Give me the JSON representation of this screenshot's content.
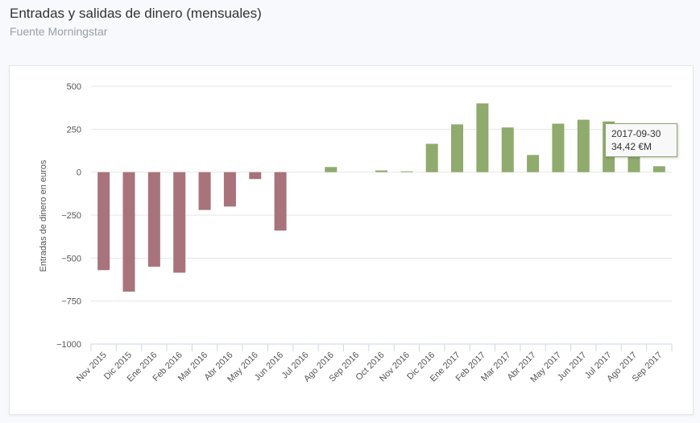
{
  "header": {
    "title": "Entradas y salidas de dinero (mensuales)",
    "subtitle": "Fuente Morningstar"
  },
  "tooltip": {
    "date": "2017-09-30",
    "value": "34,42 €M"
  },
  "colors": {
    "negative": "#a8737a",
    "positive": "#8fab6d",
    "grid": "#e6e6e6"
  },
  "chart_data": {
    "type": "bar",
    "title": "Entradas y salidas de dinero (mensuales)",
    "subtitle": "Fuente Morningstar",
    "xlabel": "",
    "ylabel": "Entradas de dinero en euros",
    "ylim": [
      -1000,
      500
    ],
    "yticks": [
      500,
      250,
      0,
      -250,
      -500,
      -750,
      -1000
    ],
    "ytick_labels": [
      "500",
      "250",
      "0",
      "−250",
      "−500",
      "−750",
      "−1000"
    ],
    "grid": true,
    "legend": "none",
    "categories": [
      "Nov 2015",
      "Dic 2015",
      "Ene 2016",
      "Feb 2016",
      "Mar 2016",
      "Abr 2016",
      "May 2016",
      "Jun 2016",
      "Jul 2016",
      "Ago 2016",
      "Sep 2016",
      "Oct 2016",
      "Nov 2016",
      "Dic 2016",
      "Ene 2017",
      "Feb 2017",
      "Mar 2017",
      "Abr 2017",
      "May 2017",
      "Jun 2017",
      "Jul 2017",
      "Ago 2017",
      "Sep 2017"
    ],
    "values": [
      -570,
      -695,
      -550,
      -585,
      -220,
      -200,
      -40,
      -340,
      0,
      30,
      0,
      10,
      5,
      165,
      278,
      400,
      260,
      100,
      282,
      305,
      295,
      130,
      34.42
    ]
  }
}
